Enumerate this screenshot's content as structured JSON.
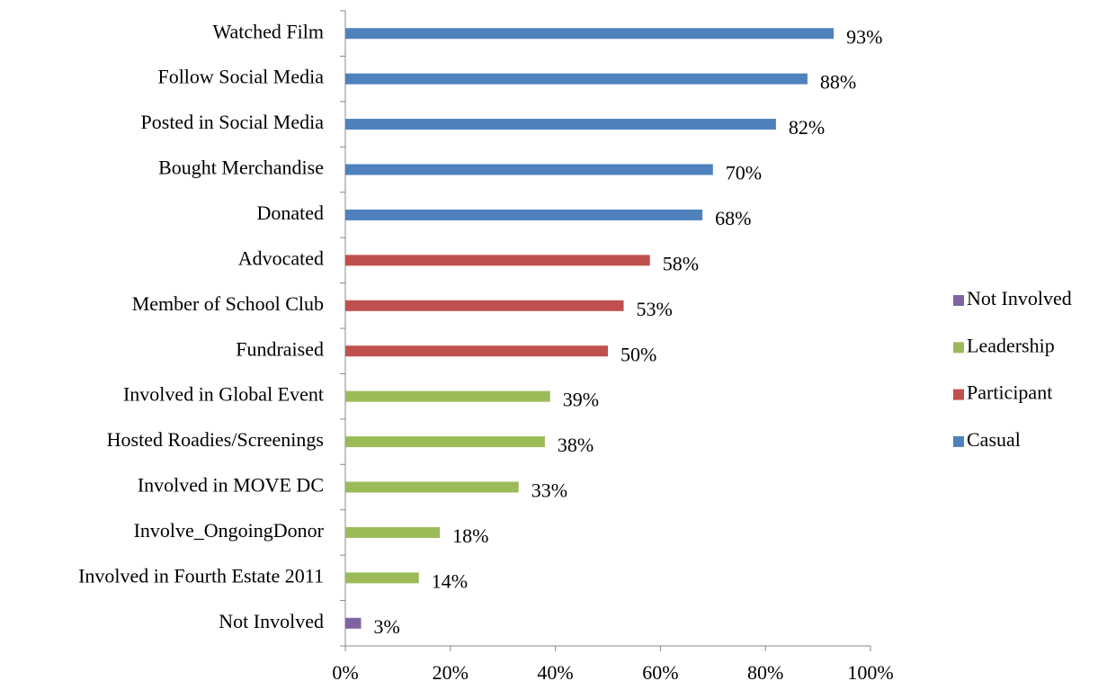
{
  "chart_data": {
    "type": "bar",
    "orientation": "horizontal",
    "categories": [
      "Watched Film",
      "Follow Social Media",
      "Posted in Social Media",
      "Bought Merchandise",
      "Donated",
      "Advocated",
      "Member of School Club",
      "Fundraised",
      "Involved in Global Event",
      "Hosted Roadies/Screenings",
      "Involved in MOVE DC",
      "Involve_OngoingDonor",
      "Involved in Fourth Estate 2011",
      "Not Involved"
    ],
    "series": [
      {
        "name": "Not Involved",
        "color": "#8064a2",
        "values": [
          null,
          null,
          null,
          null,
          null,
          null,
          null,
          null,
          null,
          null,
          null,
          null,
          null,
          3
        ],
        "value_labels": [
          null,
          null,
          null,
          null,
          null,
          null,
          null,
          null,
          null,
          null,
          null,
          null,
          null,
          "3%"
        ]
      },
      {
        "name": "Leadership",
        "color": "#9bbb59",
        "values": [
          null,
          null,
          null,
          null,
          null,
          null,
          null,
          null,
          39,
          38,
          33,
          18,
          14,
          null
        ],
        "value_labels": [
          null,
          null,
          null,
          null,
          null,
          null,
          null,
          null,
          "39%",
          "38%",
          "33%",
          "18%",
          "14%",
          null
        ]
      },
      {
        "name": "Participant",
        "color": "#c0504d",
        "values": [
          null,
          null,
          null,
          null,
          null,
          58,
          53,
          50,
          null,
          null,
          null,
          null,
          null,
          null
        ],
        "value_labels": [
          null,
          null,
          null,
          null,
          null,
          "58%",
          "53%",
          "50%",
          null,
          null,
          null,
          null,
          null,
          null
        ]
      },
      {
        "name": "Casual",
        "color": "#4f81bd",
        "values": [
          93,
          88,
          82,
          70,
          68,
          null,
          null,
          null,
          null,
          null,
          null,
          null,
          null,
          null
        ],
        "value_labels": [
          "93%",
          "88%",
          "82%",
          "70%",
          "68%",
          null,
          null,
          null,
          null,
          null,
          null,
          null,
          null,
          null
        ]
      }
    ],
    "xlim": [
      0,
      100
    ],
    "xticks": [
      {
        "value": 0,
        "label": "0%"
      },
      {
        "value": 20,
        "label": "20%"
      },
      {
        "value": 40,
        "label": "40%"
      },
      {
        "value": 60,
        "label": "60%"
      },
      {
        "value": 80,
        "label": "80%"
      },
      {
        "value": 100,
        "label": "100%"
      }
    ],
    "legend": "right"
  }
}
